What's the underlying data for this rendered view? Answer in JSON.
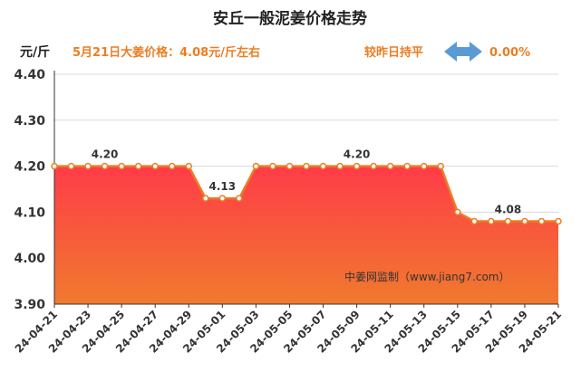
{
  "chart_data": {
    "type": "area",
    "title": "安丘一般泥姜价格走势",
    "unit_label": "元/斤",
    "price_note": "5月21日大姜价格：4.08元/斤左右",
    "compare_note": "较昨日持平",
    "change_value": "0.00%",
    "watermark": "中姜网监制（www.jiang7.com）",
    "ylim": [
      3.9,
      4.4
    ],
    "y_ticks": [
      "3.90",
      "4.00",
      "4.10",
      "4.20",
      "4.30",
      "4.40"
    ],
    "x_tick_labels": [
      "24-04-21",
      "24-04-23",
      "24-04-25",
      "24-04-27",
      "24-04-29",
      "24-05-01",
      "24-05-03",
      "24-05-05",
      "24-05-07",
      "24-05-09",
      "24-05-11",
      "24-05-13",
      "24-05-15",
      "24-05-17",
      "24-05-19",
      "24-05-21"
    ],
    "x": [
      "24-04-21",
      "24-04-22",
      "24-04-23",
      "24-04-24",
      "24-04-25",
      "24-04-26",
      "24-04-27",
      "24-04-28",
      "24-04-29",
      "24-04-30",
      "24-05-01",
      "24-05-02",
      "24-05-03",
      "24-05-04",
      "24-05-05",
      "24-05-06",
      "24-05-07",
      "24-05-08",
      "24-05-09",
      "24-05-10",
      "24-05-11",
      "24-05-12",
      "24-05-13",
      "24-05-14",
      "24-05-15",
      "24-05-16",
      "24-05-17",
      "24-05-18",
      "24-05-19",
      "24-05-20",
      "24-05-21"
    ],
    "values": [
      4.2,
      4.2,
      4.2,
      4.2,
      4.2,
      4.2,
      4.2,
      4.2,
      4.2,
      4.13,
      4.13,
      4.13,
      4.2,
      4.2,
      4.2,
      4.2,
      4.2,
      4.2,
      4.2,
      4.2,
      4.2,
      4.2,
      4.2,
      4.2,
      4.1,
      4.08,
      4.08,
      4.08,
      4.08,
      4.08,
      4.08
    ],
    "data_labels": [
      {
        "index": 3,
        "text": "4.20"
      },
      {
        "index": 10,
        "text": "4.13"
      },
      {
        "index": 18,
        "text": "4.20"
      },
      {
        "index": 27,
        "text": "4.08"
      }
    ],
    "grid": true,
    "colors": {
      "line": "#ec7d22",
      "marker_fill": "#ffffff",
      "fill_top": "#ff3c48",
      "fill_bottom": "#f07a2e",
      "accent_text": "#ec7d22",
      "arrow": "#5b9bd5",
      "grid": "#d9d9d9"
    },
    "icons": {
      "change_arrow": "double-arrow-icon"
    }
  }
}
